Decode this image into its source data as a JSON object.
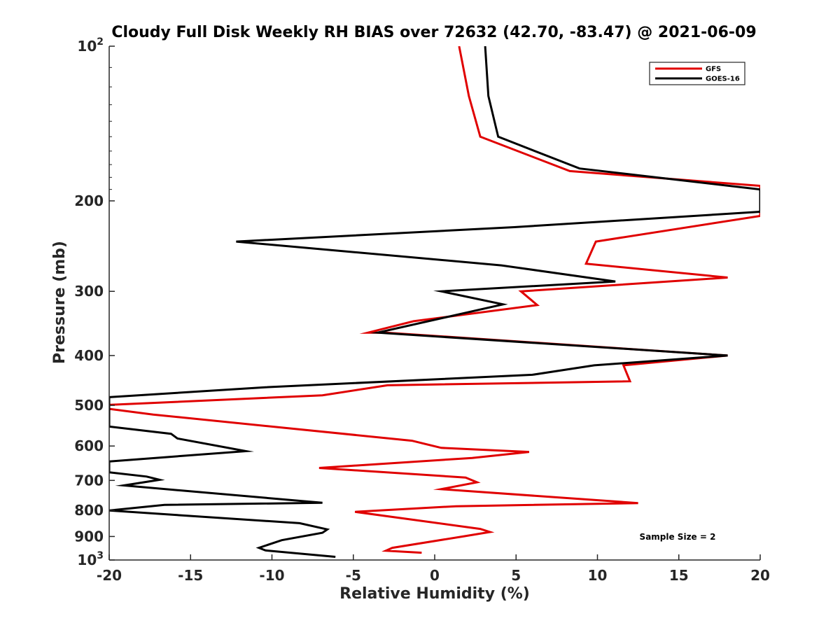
{
  "chart_data": {
    "type": "line",
    "title": "Cloudy Full Disk Weekly RH BIAS over 72632 (42.70, -83.47) @ 2021-06-09",
    "xlabel": "Relative Humidity (%)",
    "ylabel": "Pressure (mb)",
    "xlim": [
      -20,
      20
    ],
    "ylim": [
      100,
      1000
    ],
    "y_scale": "log",
    "y_reversed": true,
    "grid": false,
    "xticks": [
      "-20",
      "-15",
      "-10",
      "-5",
      "0",
      "5",
      "10",
      "15",
      "20"
    ],
    "yticks": [
      {
        "value": 100,
        "base": "10",
        "exp": "2"
      },
      {
        "value": 200,
        "label": "200"
      },
      {
        "value": 300,
        "label": "300"
      },
      {
        "value": 400,
        "label": "400"
      },
      {
        "value": 500,
        "label": "500"
      },
      {
        "value": 600,
        "label": "600"
      },
      {
        "value": 700,
        "label": "700"
      },
      {
        "value": 800,
        "label": "800"
      },
      {
        "value": 900,
        "label": "900"
      },
      {
        "value": 1000,
        "base": "10",
        "exp": "3"
      }
    ],
    "legend_position": "top-right",
    "annotation": "Sample Size = 2",
    "series": [
      {
        "name": "GFS",
        "color": "#e00000",
        "points": [
          [
            1.5,
            100
          ],
          [
            2.1,
            125
          ],
          [
            2.8,
            150
          ],
          [
            8.3,
            175
          ],
          [
            20,
            187
          ],
          [
            20,
            214
          ],
          [
            9.9,
            240
          ],
          [
            9.3,
            265
          ],
          [
            18.0,
            282
          ],
          [
            5.3,
            300
          ],
          [
            6.3,
            319
          ],
          [
            -1.3,
            343
          ],
          [
            -4.1,
            361
          ],
          [
            -3.0,
            361
          ],
          [
            18.0,
            400
          ],
          [
            11.6,
            418
          ],
          [
            12.0,
            449
          ],
          [
            -2.9,
            457
          ],
          [
            -6.9,
            478
          ],
          [
            -20,
            499
          ],
          [
            -20,
            508
          ],
          [
            -17.3,
            521
          ],
          [
            -1.4,
            586
          ],
          [
            0.4,
            605
          ],
          [
            5.8,
            616
          ],
          [
            2.3,
            633
          ],
          [
            -7.1,
            662
          ],
          [
            1.9,
            691
          ],
          [
            2.6,
            706
          ],
          [
            0.4,
            728
          ],
          [
            12.5,
            775
          ],
          [
            1.3,
            786
          ],
          [
            -4.9,
            806
          ],
          [
            2.8,
            870
          ],
          [
            3.4,
            882
          ],
          [
            1.8,
            899
          ],
          [
            -2.6,
            947
          ],
          [
            -3.0,
            959
          ],
          [
            -0.8,
            968
          ]
        ]
      },
      {
        "name": "GOES-16",
        "color": "#000000",
        "points": [
          [
            3.1,
            100
          ],
          [
            3.3,
            125
          ],
          [
            3.9,
            150
          ],
          [
            8.9,
            173
          ],
          [
            20,
            190
          ],
          [
            20,
            210
          ],
          [
            4.9,
            225
          ],
          [
            -12.2,
            240
          ],
          [
            4.1,
            267
          ],
          [
            11.1,
            287
          ],
          [
            0.4,
            300
          ],
          [
            4.2,
            318
          ],
          [
            -3.5,
            361
          ],
          [
            18.0,
            400
          ],
          [
            9.8,
            418
          ],
          [
            6.0,
            436
          ],
          [
            -10.4,
            461
          ],
          [
            -20,
            482
          ],
          [
            -20,
            550
          ],
          [
            -16.2,
            568
          ],
          [
            -15.8,
            580
          ],
          [
            -11.6,
            614
          ],
          [
            -16.3,
            630
          ],
          [
            -20,
            643
          ],
          [
            -20,
            675
          ],
          [
            -17.7,
            688
          ],
          [
            -16.9,
            698
          ],
          [
            -19.1,
            716
          ],
          [
            -6.9,
            774
          ],
          [
            -16.6,
            781
          ],
          [
            -20,
            801
          ],
          [
            -8.3,
            848
          ],
          [
            -6.6,
            872
          ],
          [
            -6.9,
            885
          ],
          [
            -9.4,
            915
          ],
          [
            -10.8,
            947
          ],
          [
            -10.4,
            958
          ],
          [
            -6.1,
            986
          ]
        ]
      }
    ]
  }
}
